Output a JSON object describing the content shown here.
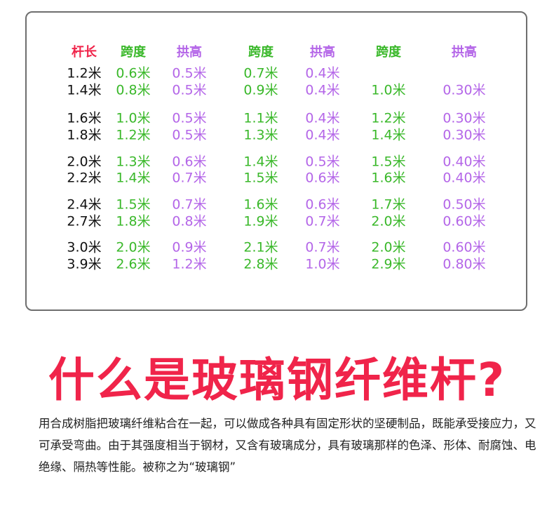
{
  "colors": {
    "label": "#f0244a",
    "span": "#3ab82a",
    "arch": "#b466e8",
    "length": "#111111"
  },
  "table": {
    "headers": [
      "杆长",
      "跨度",
      "拱高",
      "跨度",
      "拱高",
      "跨度",
      "拱高"
    ],
    "rows": [
      [
        "1.2米",
        "0.6米",
        "0.5米",
        "0.7米",
        "0.4米",
        "",
        ""
      ],
      [
        "1.4米",
        "0.8米",
        "0.5米",
        "0.9米",
        "0.4米",
        "1.0米",
        "0.30米"
      ],
      [
        "1.6米",
        "1.0米",
        "0.5米",
        "1.1米",
        "0.4米",
        "1.2米",
        "0.30米"
      ],
      [
        "1.8米",
        "1.2米",
        "0.5米",
        "1.3米",
        "0.4米",
        "1.4米",
        "0.30米"
      ],
      [
        "2.0米",
        "1.3米",
        "0.6米",
        "1.4米",
        "0.5米",
        "1.5米",
        "0.40米"
      ],
      [
        "2.2米",
        "1.4米",
        "0.7米",
        "1.5米",
        "0.6米",
        "1.6米",
        "0.40米"
      ],
      [
        "2.4米",
        "1.5米",
        "0.7米",
        "1.6米",
        "0.6米",
        "1.7米",
        "0.50米"
      ],
      [
        "2.7米",
        "1.8米",
        "0.8米",
        "1.9米",
        "0.7米",
        "2.0米",
        "0.60米"
      ],
      [
        "3.0米",
        "2.0米",
        "0.9米",
        "2.1米",
        "0.7米",
        "2.0米",
        "0.60米"
      ],
      [
        "3.9米",
        "2.6米",
        "1.2米",
        "2.8米",
        "1.0米",
        "2.9米",
        "0.80米"
      ]
    ]
  },
  "title": "什么是玻璃钢纤维杆?",
  "description": "用合成树脂把玻璃纤维粘合在一起，可以做成各种具有固定形状的坚硬制品，既能承受接应力，又可承受弯曲。由于其强度相当于钢材，又含有玻璃成分，具有玻璃那样的色泽、形体、耐腐蚀、电绝缘、隔热等性能。被称之为“玻璃钢”"
}
